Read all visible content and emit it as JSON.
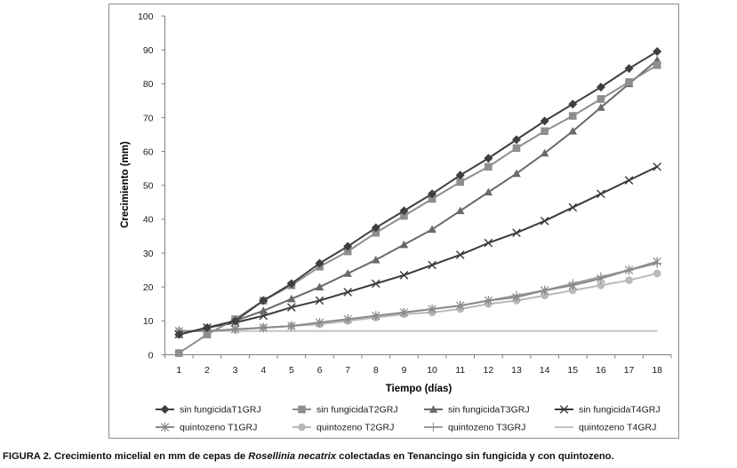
{
  "caption": {
    "label": "FIGURA 2.",
    "text_before": "Crecimiento micelial en mm de cepas de",
    "species": "Rosellinia necatrix",
    "text_after": "colectadas en Tenancingo sin fungicida y con quintozeno."
  },
  "chart_data": {
    "type": "line",
    "title": "",
    "xlabel": "Tiempo (días)",
    "ylabel": "Crecimiento (mm)",
    "categories": [
      1,
      2,
      3,
      4,
      5,
      6,
      7,
      8,
      9,
      10,
      11,
      12,
      13,
      14,
      15,
      16,
      17,
      18
    ],
    "yticks": [
      0,
      10,
      20,
      30,
      40,
      50,
      60,
      70,
      80,
      90,
      100
    ],
    "ylim": [
      0,
      100
    ],
    "grid": false,
    "legend_position": "bottom",
    "series": [
      {
        "name": "sin fungicidaT1GRJ",
        "marker": "diamond",
        "color": "#3f3f3f",
        "values": [
          6,
          8,
          10,
          16,
          21,
          27,
          32,
          37.5,
          42.5,
          47.5,
          53,
          58,
          63.5,
          69,
          74,
          79,
          84.5,
          89.5
        ]
      },
      {
        "name": "sin fungicidaT2GRJ",
        "marker": "square",
        "color": "#8e8e8e",
        "values": [
          0.5,
          6,
          10.5,
          16,
          20.5,
          26,
          30.5,
          36,
          41,
          46,
          51,
          55.5,
          61,
          66,
          70.5,
          75.5,
          80.5,
          85.5
        ]
      },
      {
        "name": "sin fungicidaT3GRJ",
        "marker": "triangle",
        "color": "#6a6a6a",
        "values": [
          6,
          8,
          10,
          13,
          16.5,
          20,
          24,
          28,
          32.5,
          37,
          42.5,
          48,
          53.5,
          59.5,
          66,
          73,
          80,
          87
        ]
      },
      {
        "name": "sin fungicidaT4GRJ",
        "marker": "x",
        "color": "#3a3a3a",
        "values": [
          6,
          8,
          9.5,
          11.5,
          14,
          16,
          18.5,
          21,
          23.5,
          26.5,
          29.5,
          33,
          36,
          39.5,
          43.5,
          47.5,
          51.5,
          55.5
        ]
      },
      {
        "name": "quintozeno T1GRJ",
        "marker": "asterisk",
        "color": "#8a8a8a",
        "values": [
          7,
          7,
          7.5,
          8,
          8.5,
          9.5,
          10.5,
          11.5,
          12.5,
          13.5,
          14.5,
          16,
          17,
          19,
          20.5,
          22.5,
          25,
          27.5
        ]
      },
      {
        "name": "quintozeno T2GRJ",
        "marker": "circle",
        "color": "#b9b9b9",
        "values": [
          7,
          7,
          7.5,
          8,
          8.5,
          9,
          10,
          11,
          12,
          12.5,
          13.5,
          15,
          16,
          17.5,
          19,
          20.5,
          22,
          24
        ]
      },
      {
        "name": "quintozeno T3GRJ",
        "marker": "plus",
        "color": "#9c9c9c",
        "values": [
          7,
          7,
          7.5,
          8,
          8.5,
          9.5,
          10.5,
          11.5,
          12.5,
          13.5,
          14.5,
          16,
          17.5,
          19,
          21,
          23,
          25,
          27
        ]
      },
      {
        "name": "quintozeno T4GRJ",
        "marker": "none",
        "color": "#c4c4c4",
        "values": [
          7,
          7,
          7,
          7,
          7,
          7,
          7,
          7,
          7,
          7,
          7,
          7,
          7,
          7,
          7,
          7,
          7,
          7
        ]
      }
    ]
  }
}
